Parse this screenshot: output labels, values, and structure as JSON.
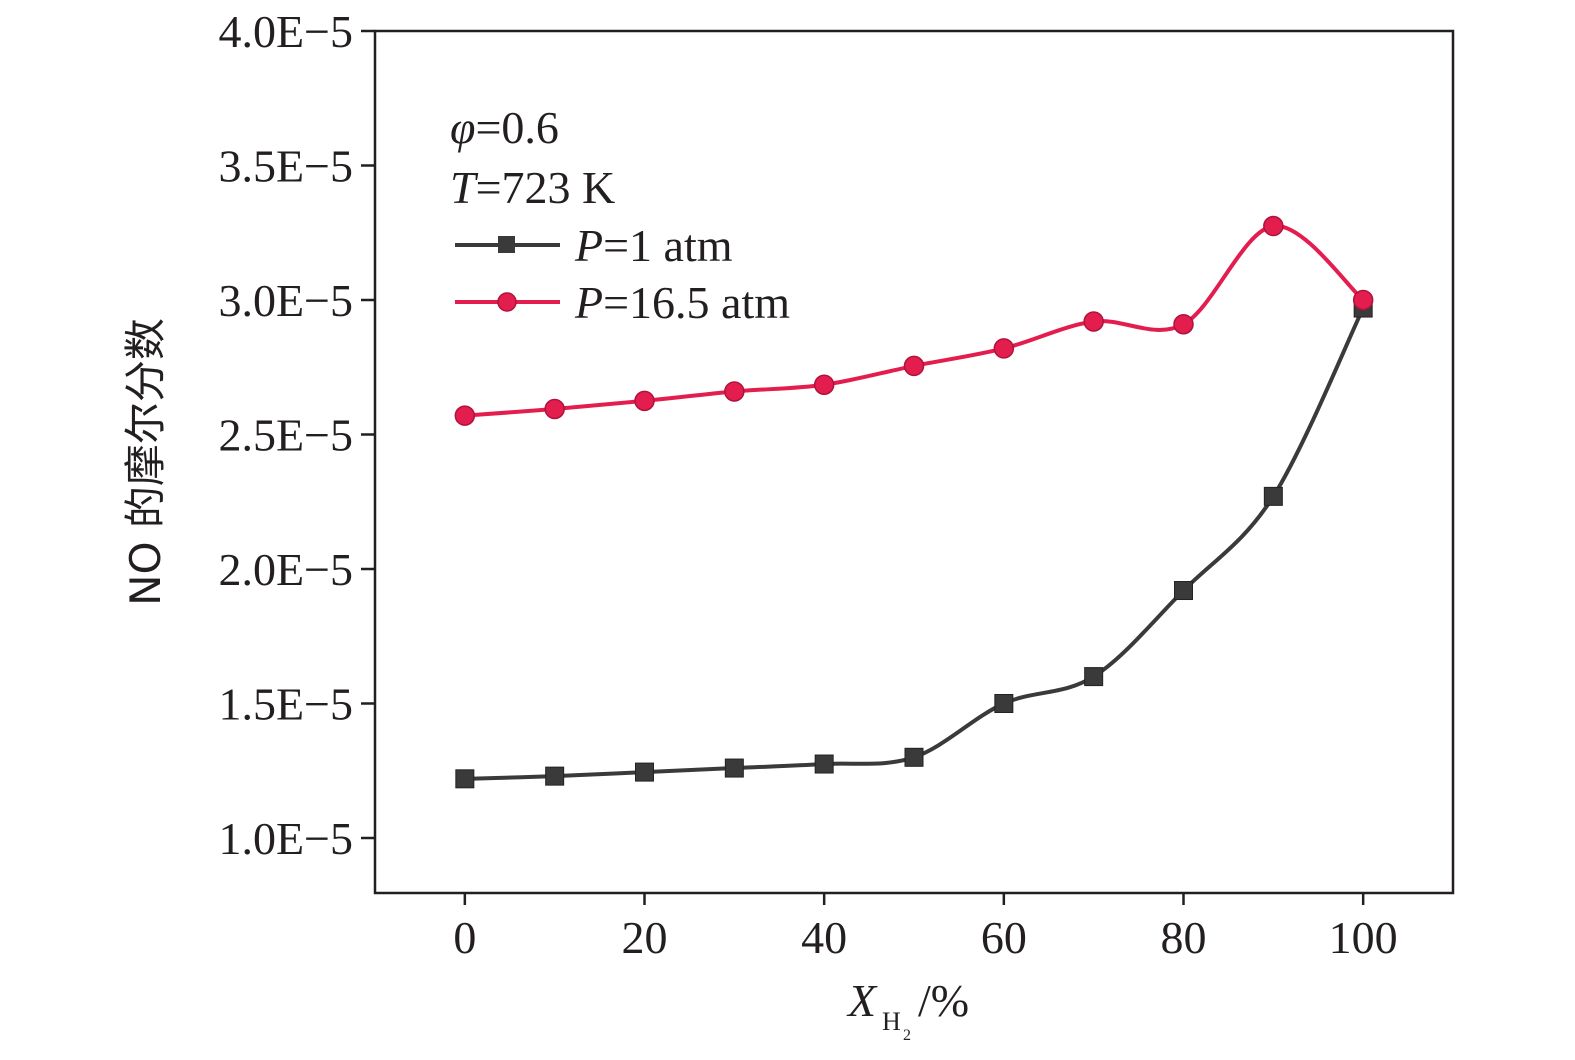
{
  "chart_data": {
    "type": "line",
    "x": [
      0,
      10,
      20,
      30,
      40,
      50,
      60,
      70,
      80,
      90,
      100
    ],
    "series": [
      {
        "name": "P=1 atm",
        "name_parts": {
          "var": "P",
          "rest": "=1 atm"
        },
        "color": "#3a3a3a",
        "marker": "square",
        "values": [
          1.22e-05,
          1.23e-05,
          1.245e-05,
          1.26e-05,
          1.275e-05,
          1.3e-05,
          1.5e-05,
          1.6e-05,
          1.92e-05,
          2.27e-05,
          2.97e-05
        ]
      },
      {
        "name": "P=16.5 atm",
        "name_parts": {
          "var": "P",
          "rest": "=16.5 atm"
        },
        "color": "#e31e4f",
        "marker": "circle",
        "values": [
          2.57e-05,
          2.595e-05,
          2.625e-05,
          2.66e-05,
          2.685e-05,
          2.755e-05,
          2.82e-05,
          2.92e-05,
          2.91e-05,
          3.275e-05,
          3e-05
        ]
      }
    ],
    "xlim": [
      -10,
      110
    ],
    "ylim": [
      8e-06,
      4e-05
    ],
    "xticks": [
      0,
      20,
      40,
      60,
      80,
      100
    ],
    "xtick_labels": [
      "0",
      "20",
      "40",
      "60",
      "80",
      "100"
    ],
    "yticks": [
      1e-05,
      1.5e-05,
      2e-05,
      2.5e-05,
      3e-05,
      3.5e-05,
      4e-05
    ],
    "ytick_labels": [
      "1.0E−5",
      "1.5E−5",
      "2.0E−5",
      "2.5E−5",
      "3.0E−5",
      "3.5E−5",
      "4.0E−5"
    ],
    "xlabel": {
      "var": "X",
      "sub": "H",
      "subsub": "2",
      "rest": "/%"
    },
    "ylabel": "NO 的摩尔分数",
    "annotations": [
      {
        "var": "φ",
        "rest": "=0.6"
      },
      {
        "var": "T",
        "rest": "=723 K"
      }
    ],
    "legend_placement": "top-left",
    "grid": false
  }
}
